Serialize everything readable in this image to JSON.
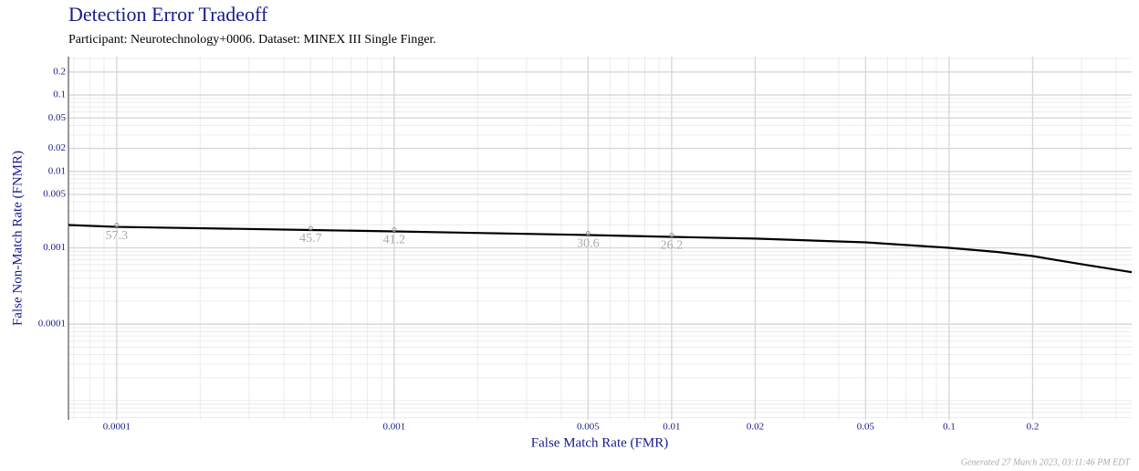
{
  "chart_data": {
    "type": "line",
    "title": "Detection Error Tradeoff",
    "subtitle": "Participant: Neurotechnology+0006. Dataset: MINEX III Single Finger.",
    "xlabel": "False Match Rate (FMR)",
    "ylabel": "False Non-Match Rate (FNMR)",
    "xscale": "log",
    "yscale": "log",
    "grid": true,
    "xlim": [
      6.7e-05,
      0.455
    ],
    "ylim": [
      5.6e-06,
      0.318
    ],
    "xticks": [
      0.0001,
      0.001,
      0.005,
      0.01,
      0.02,
      0.05,
      0.1,
      0.2
    ],
    "yticks": [
      0.0001,
      0.001,
      0.005,
      0.01,
      0.02,
      0.05,
      0.1,
      0.2
    ],
    "series": [
      {
        "color": "#000000",
        "x": [
          6.7e-05,
          0.0001,
          0.0005,
          0.001,
          0.005,
          0.01,
          0.02,
          0.05,
          0.1,
          0.15,
          0.2,
          0.3,
          0.455
        ],
        "y": [
          0.00199,
          0.00188,
          0.00171,
          0.00164,
          0.00147,
          0.00139,
          0.00132,
          0.00118,
          0.001,
          0.00088,
          0.00078,
          0.00061,
          0.00048
        ]
      }
    ],
    "annotations": [
      {
        "x": 0.0001,
        "y": 0.00188,
        "label": "57.3"
      },
      {
        "x": 0.0005,
        "y": 0.00171,
        "label": "45.7"
      },
      {
        "x": 0.001,
        "y": 0.00164,
        "label": "41.2"
      },
      {
        "x": 0.005,
        "y": 0.00147,
        "label": "30.6"
      },
      {
        "x": 0.01,
        "y": 0.00139,
        "label": "26.2"
      }
    ],
    "footer": "Generated 27 March 2023, 03:11:46 PM EDT"
  }
}
